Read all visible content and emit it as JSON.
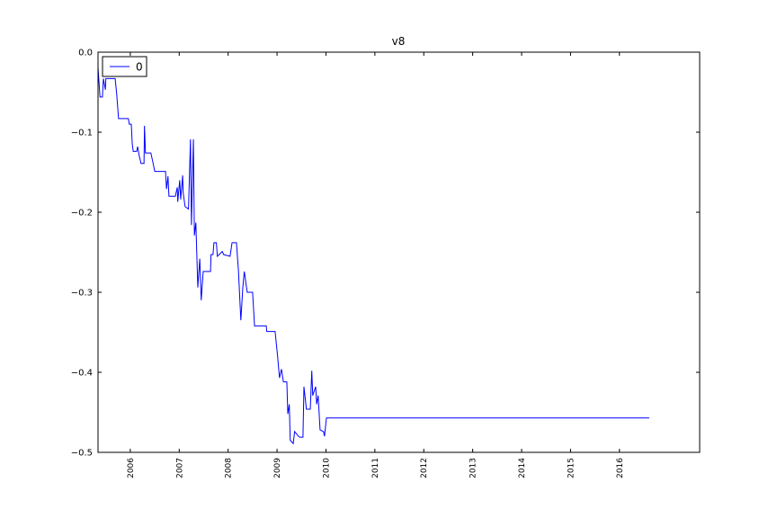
{
  "chart_data": {
    "type": "line",
    "title": "v8",
    "x": [
      2005.34,
      2005.38,
      2005.43,
      2005.45,
      2005.49,
      2005.5,
      2005.69,
      2005.72,
      2005.76,
      2005.96,
      2005.98,
      2006.02,
      2006.04,
      2006.06,
      2006.13,
      2006.15,
      2006.18,
      2006.22,
      2006.28,
      2006.29,
      2006.31,
      2006.42,
      2006.46,
      2006.5,
      2006.72,
      2006.74,
      2006.77,
      2006.79,
      2006.92,
      2006.96,
      2006.97,
      2007.01,
      2007.03,
      2007.07,
      2007.08,
      2007.12,
      2007.19,
      2007.23,
      2007.25,
      2007.29,
      2007.31,
      2007.34,
      2007.38,
      2007.42,
      2007.45,
      2007.49,
      2007.54,
      2007.64,
      2007.65,
      2007.69,
      2007.71,
      2007.76,
      2007.78,
      2007.88,
      2007.91,
      2008.04,
      2008.08,
      2008.17,
      2008.21,
      2008.26,
      2008.3,
      2008.33,
      2008.39,
      2008.5,
      2008.54,
      2008.78,
      2008.79,
      2008.96,
      2009.01,
      2009.05,
      2009.09,
      2009.13,
      2009.2,
      2009.22,
      2009.25,
      2009.27,
      2009.33,
      2009.36,
      2009.44,
      2009.46,
      2009.53,
      2009.55,
      2009.6,
      2009.68,
      2009.71,
      2009.73,
      2009.79,
      2009.81,
      2009.84,
      2009.88,
      2009.95,
      2009.97,
      2010.01,
      2016.61
    ],
    "series": [
      {
        "name": "0",
        "color": "#0000ff",
        "values": [
          -0.019,
          -0.056,
          -0.056,
          -0.033,
          -0.047,
          -0.033,
          -0.033,
          -0.051,
          -0.083,
          -0.083,
          -0.09,
          -0.09,
          -0.115,
          -0.124,
          -0.124,
          -0.118,
          -0.129,
          -0.139,
          -0.139,
          -0.092,
          -0.126,
          -0.126,
          -0.137,
          -0.149,
          -0.149,
          -0.171,
          -0.155,
          -0.18,
          -0.18,
          -0.169,
          -0.187,
          -0.16,
          -0.184,
          -0.154,
          -0.175,
          -0.193,
          -0.196,
          -0.109,
          -0.216,
          -0.109,
          -0.229,
          -0.213,
          -0.294,
          -0.258,
          -0.31,
          -0.274,
          -0.274,
          -0.274,
          -0.253,
          -0.253,
          -0.238,
          -0.238,
          -0.255,
          -0.249,
          -0.253,
          -0.255,
          -0.238,
          -0.238,
          -0.272,
          -0.335,
          -0.294,
          -0.274,
          -0.3,
          -0.3,
          -0.342,
          -0.342,
          -0.349,
          -0.349,
          -0.379,
          -0.407,
          -0.396,
          -0.412,
          -0.412,
          -0.452,
          -0.44,
          -0.485,
          -0.489,
          -0.474,
          -0.48,
          -0.481,
          -0.481,
          -0.418,
          -0.446,
          -0.446,
          -0.398,
          -0.429,
          -0.418,
          -0.44,
          -0.429,
          -0.472,
          -0.474,
          -0.48,
          -0.457,
          -0.457
        ]
      }
    ],
    "xlim": [
      2005.34,
      2017.64
    ],
    "xticks": [
      2006,
      2007,
      2008,
      2009,
      2010,
      2011,
      2012,
      2013,
      2014,
      2015,
      2016
    ],
    "ylim": [
      -0.5,
      0
    ],
    "yticks": [
      {
        "value": -0.5,
        "label": "−0.5"
      },
      {
        "value": -0.4,
        "label": "−0.4"
      },
      {
        "value": -0.3,
        "label": "−0.3"
      },
      {
        "value": -0.2,
        "label": "−0.2"
      },
      {
        "value": -0.1,
        "label": "−0.1"
      },
      {
        "value": 0,
        "label": "0.0"
      }
    ],
    "legend": "upper left"
  }
}
